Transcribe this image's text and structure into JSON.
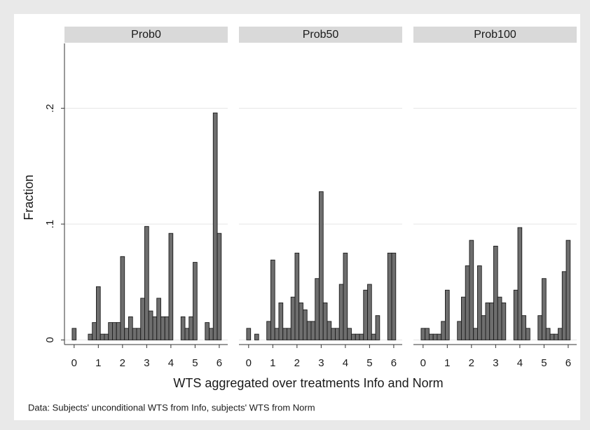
{
  "chart_data": [
    {
      "type": "histogram",
      "title": "Prob0",
      "ylabel": "Fraction",
      "bins": [
        -0.083,
        0.083,
        0.25,
        0.417,
        0.583,
        0.75,
        0.917,
        1.083,
        1.25,
        1.417,
        1.583,
        1.75,
        1.917,
        2.083,
        2.25,
        2.417,
        2.583,
        2.75,
        2.917,
        3.083,
        3.25,
        3.417,
        3.583,
        3.75,
        3.917,
        4.083,
        4.25,
        4.417,
        4.583,
        4.75,
        4.917,
        5.083,
        5.25,
        5.417,
        5.583,
        5.75,
        5.917,
        6.083
      ],
      "values": [
        0.01,
        0,
        0,
        0,
        0.005,
        0.015,
        0.046,
        0.005,
        0.005,
        0.015,
        0.015,
        0.015,
        0.072,
        0.01,
        0.02,
        0.01,
        0.01,
        0.036,
        0.098,
        0.025,
        0.02,
        0.036,
        0.02,
        0.02,
        0.092,
        0,
        0,
        0.02,
        0.01,
        0.02,
        0.067,
        0,
        0,
        0.015,
        0.01,
        0.196,
        0.092
      ],
      "xlim": [
        -0.4,
        6.35
      ],
      "ylim": [
        -0.004,
        0.256
      ],
      "xticks": [
        0,
        1,
        2,
        3,
        4,
        5,
        6
      ],
      "yticks": [
        0,
        {
          "value": 0.1,
          "label": ".1"
        },
        {
          "value": 0.2,
          "label": ".2"
        }
      ],
      "color": "#6e6e6e",
      "grid": true
    },
    {
      "type": "histogram",
      "title": "Prob50",
      "bins": [
        -0.083,
        0.083,
        0.25,
        0.417,
        0.583,
        0.75,
        0.917,
        1.083,
        1.25,
        1.417,
        1.583,
        1.75,
        1.917,
        2.083,
        2.25,
        2.417,
        2.583,
        2.75,
        2.917,
        3.083,
        3.25,
        3.417,
        3.583,
        3.75,
        3.917,
        4.083,
        4.25,
        4.417,
        4.583,
        4.75,
        4.917,
        5.083,
        5.25,
        5.417,
        5.583,
        5.75,
        5.917,
        6.083
      ],
      "values": [
        0.01,
        0,
        0.005,
        0,
        0,
        0.016,
        0.069,
        0.01,
        0.032,
        0.01,
        0.01,
        0.037,
        0.075,
        0.032,
        0.026,
        0.016,
        0.016,
        0.053,
        0.128,
        0.032,
        0.016,
        0.01,
        0.01,
        0.048,
        0.075,
        0.01,
        0.005,
        0.005,
        0.005,
        0.043,
        0.048,
        0.005,
        0.021,
        0,
        0,
        0.075,
        0.075
      ],
      "xlim": [
        -0.4,
        6.35
      ],
      "ylim": [
        -0.004,
        0.256
      ],
      "xticks": [
        0,
        1,
        2,
        3,
        4,
        5,
        6
      ],
      "color": "#6e6e6e"
    },
    {
      "type": "histogram",
      "title": "Prob100",
      "bins": [
        -0.083,
        0.083,
        0.25,
        0.417,
        0.583,
        0.75,
        0.917,
        1.083,
        1.25,
        1.417,
        1.583,
        1.75,
        1.917,
        2.083,
        2.25,
        2.417,
        2.583,
        2.75,
        2.917,
        3.083,
        3.25,
        3.417,
        3.583,
        3.75,
        3.917,
        4.083,
        4.25,
        4.417,
        4.583,
        4.75,
        4.917,
        5.083,
        5.25,
        5.417,
        5.583,
        5.75,
        5.917,
        6.083
      ],
      "values": [
        0.01,
        0.01,
        0.005,
        0.005,
        0.005,
        0.016,
        0.043,
        0,
        0,
        0.016,
        0.037,
        0.064,
        0.086,
        0.01,
        0.064,
        0.021,
        0.032,
        0.032,
        0.081,
        0.037,
        0.032,
        0,
        0,
        0.043,
        0.097,
        0.021,
        0.01,
        0,
        0,
        0.021,
        0.053,
        0.01,
        0.005,
        0.005,
        0.01,
        0.059,
        0.086
      ],
      "xlim": [
        -0.4,
        6.35
      ],
      "ylim": [
        -0.004,
        0.256
      ],
      "xticks": [
        0,
        1,
        2,
        3,
        4,
        5,
        6
      ],
      "color": "#6e6e6e"
    }
  ],
  "xlabel": "WTS aggregated over treatments Info and Norm",
  "note": "Data: Subjects' unconditional WTS from Info, subjects' WTS from Norm"
}
